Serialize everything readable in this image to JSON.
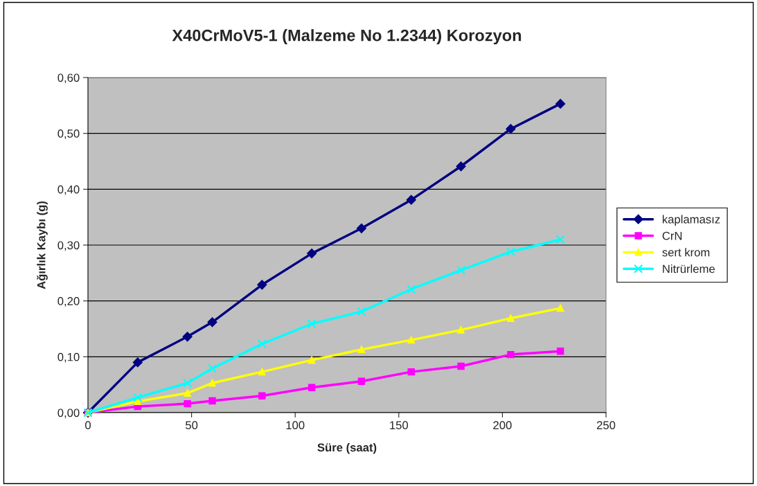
{
  "chart_data": {
    "type": "line",
    "title": "X40CrMoV5-1 (Malzeme No 1.2344) Korozyon",
    "xlabel": "Süre (saat)",
    "ylabel": "Ağırlık Kaybı (g)",
    "x": [
      0,
      24,
      48,
      60,
      84,
      108,
      132,
      156,
      180,
      204,
      228
    ],
    "series": [
      {
        "name": "kaplamasız",
        "color": "#000080",
        "marker": "diamond",
        "values": [
          0,
          0.09,
          0.136,
          0.162,
          0.229,
          0.285,
          0.33,
          0.381,
          0.441,
          0.508,
          0.553
        ]
      },
      {
        "name": "CrN",
        "color": "#ff00ff",
        "marker": "square",
        "values": [
          0,
          0.011,
          0.016,
          0.021,
          0.03,
          0.045,
          0.056,
          0.073,
          0.083,
          0.104,
          0.11
        ]
      },
      {
        "name": "sert krom",
        "color": "#ffff00",
        "marker": "triangle",
        "values": [
          0,
          0.02,
          0.035,
          0.053,
          0.073,
          0.094,
          0.113,
          0.13,
          0.148,
          0.169,
          0.187
        ]
      },
      {
        "name": "Nitrürleme",
        "color": "#00ffff",
        "marker": "cross",
        "values": [
          0,
          0.027,
          0.053,
          0.079,
          0.123,
          0.159,
          0.181,
          0.221,
          0.255,
          0.288,
          0.31
        ]
      }
    ],
    "xlim": [
      0,
      250
    ],
    "xticks": [
      0,
      50,
      100,
      150,
      200,
      250
    ],
    "ylim": [
      0,
      0.6
    ],
    "yticks": [
      {
        "value": 0,
        "label": "0,00"
      },
      {
        "value": 0.1,
        "label": "0,10"
      },
      {
        "value": 0.2,
        "label": "0,20"
      },
      {
        "value": 0.3,
        "label": "0,30"
      },
      {
        "value": 0.4,
        "label": "0,40"
      },
      {
        "value": 0.5,
        "label": "0,50"
      },
      {
        "value": 0.6,
        "label": "0,60"
      }
    ],
    "grid": "y",
    "legend": "right"
  }
}
